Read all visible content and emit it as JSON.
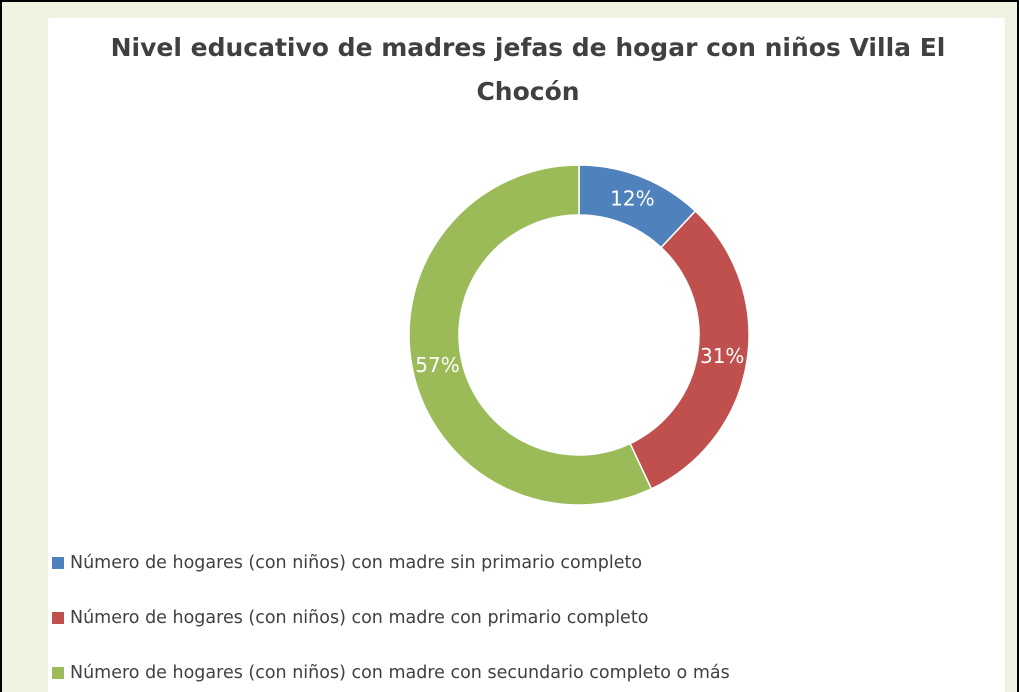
{
  "chart_data": {
    "type": "donut",
    "title": "Nivel educativo de madres jefas de hogar con niños Villa El Chocón",
    "categories": [
      "Número de hogares (con niños) con madre sin primario completo",
      "Número de hogares (con niños) con madre con primario completo",
      "Número de hogares (con niños) con madre con secundario completo o más"
    ],
    "values": [
      12,
      31,
      57
    ],
    "value_labels": [
      "12%",
      "31%",
      "57%"
    ],
    "colors": [
      "#4f81bd",
      "#c0504d",
      "#9bbb59"
    ],
    "legend": "bottom"
  }
}
